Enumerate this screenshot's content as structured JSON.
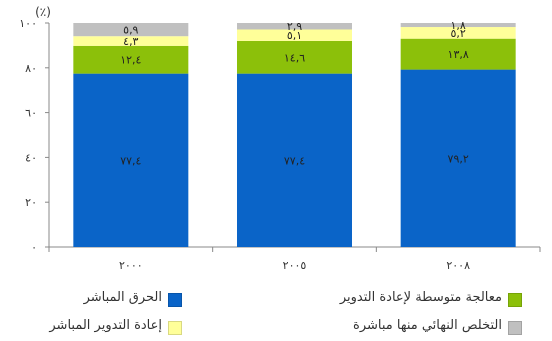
{
  "chart_data": {
    "type": "bar",
    "stacked": true,
    "categories": [
      "٢٠٠٠",
      "٢٠٠٥",
      "٢٠٠٨"
    ],
    "series": [
      {
        "name": "الحرق المباشر",
        "values": [
          77.4,
          77.4,
          79.2
        ],
        "labels": [
          "٧٧,٤",
          "٧٧,٤",
          "٧٩,٢"
        ],
        "color": "#0a64c8"
      },
      {
        "name": "معالجة متوسطة لإعادة التدوير",
        "values": [
          12.4,
          14.6,
          13.8
        ],
        "labels": [
          "١٢,٤",
          "١٤,٦",
          "١٣,٨"
        ],
        "color": "#8cc00a"
      },
      {
        "name": "إعادة التدوير المباشر",
        "values": [
          4.3,
          5.1,
          5.2
        ],
        "labels": [
          "٤,٣",
          "٥,١",
          "٥,٢"
        ],
        "color": "#ffff99"
      },
      {
        "name": "التخلص النهائي منها مباشرة",
        "values": [
          5.9,
          2.9,
          1.8
        ],
        "labels": [
          "٥,٩",
          "٢,٩",
          "١,٨"
        ],
        "color": "#c0c0c0"
      }
    ],
    "ylim": [
      0,
      100
    ],
    "yticks": [
      0,
      20,
      40,
      60,
      80,
      100
    ],
    "ytick_labels": [
      "٠",
      "٢٠",
      "٤٠",
      "٦٠",
      "٨٠",
      "١٠٠"
    ],
    "unit_label": "(٪)",
    "grid": false,
    "legend_position": "bottom"
  }
}
